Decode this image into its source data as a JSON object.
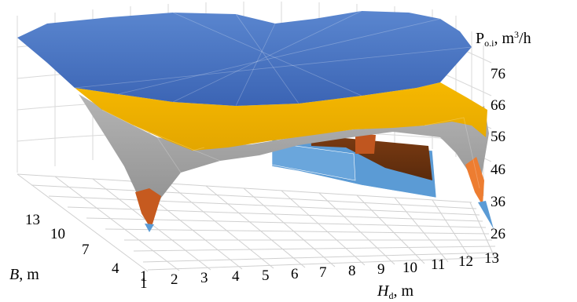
{
  "chart_data": {
    "type": "surface",
    "title": "",
    "x_axis": {
      "label_main": "H",
      "label_sub": "d",
      "label_unit": ", m",
      "ticks": [
        "1",
        "2",
        "3",
        "4",
        "5",
        "6",
        "7",
        "8",
        "9",
        "10",
        "11",
        "12",
        "13"
      ]
    },
    "y_axis": {
      "label_main": "B",
      "label_unit": ", m",
      "ticks": [
        "1",
        "4",
        "7",
        "10",
        "13"
      ]
    },
    "z_axis": {
      "label_main": "P",
      "label_sub": "o.i",
      "label_unit": ", m",
      "label_sup": "3",
      "label_tail": "/h",
      "ticks": [
        "26",
        "36",
        "46",
        "56",
        "66",
        "76"
      ],
      "range": [
        26,
        76
      ]
    },
    "legend_bands": [
      {
        "from": 26,
        "to": 36,
        "color": "#5b9bd5"
      },
      {
        "from": 36,
        "to": 46,
        "color": "#ed7d31"
      },
      {
        "from": 46,
        "to": 56,
        "color": "#a5a5a5"
      },
      {
        "from": 56,
        "to": 66,
        "color": "#ffc000"
      },
      {
        "from": 66,
        "to": 76,
        "color": "#4472c4"
      }
    ]
  }
}
